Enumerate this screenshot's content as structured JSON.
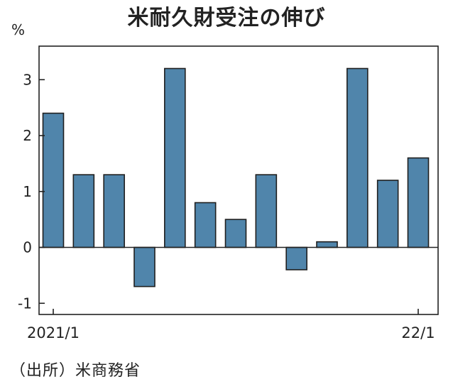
{
  "title": "米耐久財受注の伸び",
  "source": "（出所）米商務省",
  "chart_data": {
    "type": "bar",
    "unit": "%",
    "categories": [
      "2021/1",
      "",
      "",
      "",
      "",
      "",
      "",
      "",
      "",
      "",
      "",
      "",
      "22/1"
    ],
    "values": [
      2.4,
      1.3,
      1.3,
      -0.7,
      3.2,
      0.8,
      0.5,
      1.3,
      -0.4,
      0.1,
      3.2,
      1.2,
      1.6
    ],
    "ylim": [
      -1.2,
      3.6
    ],
    "yticks": [
      -1,
      0,
      1,
      2,
      3
    ],
    "bar_color": "#5085ab",
    "grid": false
  }
}
